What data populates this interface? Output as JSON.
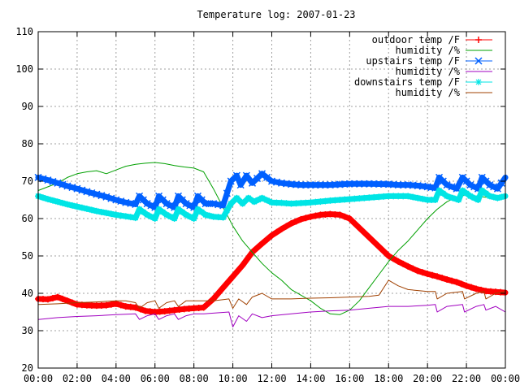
{
  "chart_data": {
    "type": "line",
    "title": "Temperature log: 2007-01-23",
    "xlabel": "",
    "ylabel": "",
    "xlim": [
      0,
      24
    ],
    "ylim": [
      20,
      110
    ],
    "grid": true,
    "legend_position": "top-right",
    "x_tick_labels": [
      "00:00",
      "02:00",
      "04:00",
      "06:00",
      "08:00",
      "10:00",
      "12:00",
      "14:00",
      "16:00",
      "18:00",
      "20:00",
      "22:00",
      "00:00"
    ],
    "y_tick_labels": [
      "20",
      "30",
      "40",
      "50",
      "60",
      "70",
      "80",
      "90",
      "100",
      "110"
    ],
    "y_ticks": [
      20,
      30,
      40,
      50,
      60,
      70,
      80,
      90,
      100,
      110
    ],
    "series": [
      {
        "name": "outdoor temp /F",
        "color": "#ff0000",
        "marker": "plus",
        "points": [
          [
            0,
            38.5
          ],
          [
            0.5,
            38.4
          ],
          [
            1,
            39
          ],
          [
            1.5,
            38
          ],
          [
            2,
            37
          ],
          [
            2.5,
            36.8
          ],
          [
            3,
            36.7
          ],
          [
            3.5,
            36.8
          ],
          [
            4,
            37.2
          ],
          [
            4.5,
            36.5
          ],
          [
            5,
            36.2
          ],
          [
            5.5,
            35.3
          ],
          [
            6,
            35
          ],
          [
            6.5,
            35.2
          ],
          [
            7,
            35.5
          ],
          [
            7.5,
            35.8
          ],
          [
            8,
            36
          ],
          [
            8.5,
            36.2
          ],
          [
            9,
            38.5
          ],
          [
            9.5,
            41.5
          ],
          [
            10,
            44.5
          ],
          [
            10.5,
            47.5
          ],
          [
            11,
            51
          ],
          [
            11.5,
            53.3
          ],
          [
            12,
            55.5
          ],
          [
            12.5,
            57.2
          ],
          [
            13,
            58.7
          ],
          [
            13.5,
            59.8
          ],
          [
            14,
            60.5
          ],
          [
            14.5,
            61
          ],
          [
            15,
            61.2
          ],
          [
            15.5,
            61
          ],
          [
            16,
            60
          ],
          [
            16.5,
            57.5
          ],
          [
            17,
            55
          ],
          [
            17.5,
            52.5
          ],
          [
            18,
            50
          ],
          [
            18.5,
            48.5
          ],
          [
            19,
            47.2
          ],
          [
            19.5,
            46
          ],
          [
            20,
            45.2
          ],
          [
            20.5,
            44.5
          ],
          [
            21,
            43.7
          ],
          [
            21.5,
            43
          ],
          [
            22,
            42
          ],
          [
            22.5,
            41.2
          ],
          [
            23,
            40.6
          ],
          [
            23.5,
            40.4
          ],
          [
            24,
            40.2
          ]
        ]
      },
      {
        "name": "humidity /%",
        "color": "#00a000",
        "marker": "none",
        "points": [
          [
            0,
            67.5
          ],
          [
            0.5,
            68.5
          ],
          [
            1,
            69.5
          ],
          [
            1.5,
            71
          ],
          [
            2,
            72
          ],
          [
            2.5,
            72.5
          ],
          [
            3,
            72.8
          ],
          [
            3.5,
            72
          ],
          [
            4,
            73
          ],
          [
            4.5,
            74
          ],
          [
            5,
            74.5
          ],
          [
            5.5,
            74.8
          ],
          [
            6,
            75
          ],
          [
            6.5,
            74.7
          ],
          [
            7,
            74.2
          ],
          [
            7.5,
            73.8
          ],
          [
            8,
            73.5
          ],
          [
            8.5,
            72.5
          ],
          [
            9,
            68
          ],
          [
            9.5,
            63
          ],
          [
            10,
            58
          ],
          [
            10.5,
            54
          ],
          [
            11,
            51
          ],
          [
            11.5,
            48
          ],
          [
            12,
            45.5
          ],
          [
            12.5,
            43.5
          ],
          [
            13,
            41
          ],
          [
            13.5,
            39.5
          ],
          [
            14,
            38
          ],
          [
            14.5,
            36
          ],
          [
            15,
            34.5
          ],
          [
            15.5,
            34.3
          ],
          [
            16,
            35.5
          ],
          [
            16.5,
            38
          ],
          [
            17,
            41.5
          ],
          [
            17.5,
            45
          ],
          [
            18,
            48.5
          ],
          [
            18.5,
            51.5
          ],
          [
            19,
            54
          ],
          [
            19.5,
            57
          ],
          [
            20,
            60
          ],
          [
            20.5,
            62.5
          ],
          [
            21,
            64.5
          ],
          [
            21.5,
            65.8
          ],
          [
            22,
            66.3
          ],
          [
            22.5,
            66
          ],
          [
            23,
            65.7
          ],
          [
            23.5,
            66
          ],
          [
            24,
            66
          ]
        ]
      },
      {
        "name": "upstairs temp /F",
        "color": "#0060ff",
        "marker": "cross",
        "points": [
          [
            0,
            71
          ],
          [
            0.5,
            70.3
          ],
          [
            1,
            69.5
          ],
          [
            1.5,
            68.7
          ],
          [
            2,
            68
          ],
          [
            2.5,
            67.2
          ],
          [
            3,
            66.5
          ],
          [
            3.5,
            65.8
          ],
          [
            4,
            65
          ],
          [
            4.5,
            64.3
          ],
          [
            5,
            63.8
          ],
          [
            5.2,
            66
          ],
          [
            5.6,
            64
          ],
          [
            6,
            63
          ],
          [
            6.2,
            66
          ],
          [
            6.6,
            64
          ],
          [
            7,
            63
          ],
          [
            7.2,
            66
          ],
          [
            7.6,
            64
          ],
          [
            8,
            63
          ],
          [
            8.2,
            66
          ],
          [
            8.6,
            64
          ],
          [
            9,
            64
          ],
          [
            9.5,
            63.5
          ],
          [
            9.9,
            70
          ],
          [
            10.2,
            71.5
          ],
          [
            10.4,
            69
          ],
          [
            10.7,
            71.5
          ],
          [
            11,
            69.5
          ],
          [
            11.5,
            72
          ],
          [
            12,
            70
          ],
          [
            12.5,
            69.5
          ],
          [
            13,
            69.2
          ],
          [
            13.5,
            69
          ],
          [
            14,
            69
          ],
          [
            15,
            69
          ],
          [
            16,
            69.3
          ],
          [
            17,
            69.3
          ],
          [
            18,
            69.2
          ],
          [
            18.5,
            69
          ],
          [
            19,
            69
          ],
          [
            19.5,
            68.8
          ],
          [
            20,
            68.5
          ],
          [
            20.4,
            68.2
          ],
          [
            20.6,
            71
          ],
          [
            21,
            69
          ],
          [
            21.5,
            68
          ],
          [
            21.8,
            71
          ],
          [
            22.2,
            69
          ],
          [
            22.6,
            68
          ],
          [
            22.8,
            71
          ],
          [
            23.2,
            69
          ],
          [
            23.6,
            68
          ],
          [
            24,
            71
          ]
        ]
      },
      {
        "name": "humidity /%",
        "color": "#a000c0",
        "marker": "none",
        "points": [
          [
            0,
            33
          ],
          [
            1,
            33.5
          ],
          [
            2,
            33.8
          ],
          [
            3,
            34
          ],
          [
            4,
            34.3
          ],
          [
            5,
            34.5
          ],
          [
            5.2,
            33
          ],
          [
            5.6,
            34
          ],
          [
            6,
            34.5
          ],
          [
            6.2,
            33
          ],
          [
            6.6,
            34
          ],
          [
            7,
            34.5
          ],
          [
            7.2,
            33
          ],
          [
            7.6,
            34
          ],
          [
            8,
            34.5
          ],
          [
            8.5,
            34.5
          ],
          [
            9,
            34.7
          ],
          [
            9.8,
            35
          ],
          [
            10,
            31
          ],
          [
            10.3,
            34
          ],
          [
            10.7,
            32.5
          ],
          [
            11,
            34.5
          ],
          [
            11.5,
            33.5
          ],
          [
            12,
            34
          ],
          [
            13,
            34.5
          ],
          [
            14,
            35
          ],
          [
            15,
            35.3
          ],
          [
            16,
            35.5
          ],
          [
            17,
            36
          ],
          [
            18,
            36.5
          ],
          [
            19,
            36.5
          ],
          [
            20,
            36.8
          ],
          [
            20.4,
            37
          ],
          [
            20.5,
            35
          ],
          [
            21,
            36.5
          ],
          [
            21.8,
            37
          ],
          [
            21.9,
            35
          ],
          [
            22.5,
            36.5
          ],
          [
            22.9,
            37
          ],
          [
            23,
            35.5
          ],
          [
            23.5,
            36.5
          ],
          [
            24,
            35
          ]
        ]
      },
      {
        "name": "downstairs temp /F",
        "color": "#00e5e5",
        "marker": "star",
        "points": [
          [
            0,
            66
          ],
          [
            0.5,
            65.2
          ],
          [
            1,
            64.5
          ],
          [
            1.5,
            63.8
          ],
          [
            2,
            63.2
          ],
          [
            2.5,
            62.6
          ],
          [
            3,
            62
          ],
          [
            3.5,
            61.5
          ],
          [
            4,
            61
          ],
          [
            4.5,
            60.6
          ],
          [
            5,
            60.2
          ],
          [
            5.2,
            62.5
          ],
          [
            5.6,
            61
          ],
          [
            6,
            60
          ],
          [
            6.2,
            62.5
          ],
          [
            6.6,
            61
          ],
          [
            7,
            60
          ],
          [
            7.2,
            62.5
          ],
          [
            7.6,
            61
          ],
          [
            8,
            60
          ],
          [
            8.2,
            62.5
          ],
          [
            8.6,
            61
          ],
          [
            9,
            60.5
          ],
          [
            9.5,
            60.3
          ],
          [
            9.9,
            64
          ],
          [
            10.2,
            65.5
          ],
          [
            10.5,
            64
          ],
          [
            10.8,
            65.5
          ],
          [
            11.1,
            64.5
          ],
          [
            11.5,
            65.5
          ],
          [
            12,
            64.3
          ],
          [
            12.5,
            64.2
          ],
          [
            13,
            64
          ],
          [
            14,
            64.3
          ],
          [
            15,
            64.8
          ],
          [
            16,
            65.2
          ],
          [
            17,
            65.6
          ],
          [
            18,
            66
          ],
          [
            19,
            66
          ],
          [
            19.5,
            65.5
          ],
          [
            20,
            65
          ],
          [
            20.4,
            65
          ],
          [
            20.6,
            67.5
          ],
          [
            21,
            66
          ],
          [
            21.6,
            65
          ],
          [
            21.8,
            67.5
          ],
          [
            22.2,
            66
          ],
          [
            22.6,
            65
          ],
          [
            22.8,
            67.5
          ],
          [
            23.2,
            66
          ],
          [
            23.6,
            65.5
          ],
          [
            24,
            66
          ]
        ]
      },
      {
        "name": "humidity /%",
        "color": "#a04000",
        "marker": "none",
        "points": [
          [
            0,
            37
          ],
          [
            1,
            37.2
          ],
          [
            2,
            37.5
          ],
          [
            3,
            37.7
          ],
          [
            4,
            38
          ],
          [
            4.5,
            38
          ],
          [
            5,
            37.5
          ],
          [
            5.2,
            36
          ],
          [
            5.6,
            37.5
          ],
          [
            6,
            38
          ],
          [
            6.2,
            36
          ],
          [
            6.6,
            37.5
          ],
          [
            7,
            38
          ],
          [
            7.2,
            36.5
          ],
          [
            7.6,
            38
          ],
          [
            8,
            38
          ],
          [
            8.5,
            38
          ],
          [
            9,
            38
          ],
          [
            9.8,
            38.5
          ],
          [
            10,
            36
          ],
          [
            10.3,
            38.5
          ],
          [
            10.7,
            37
          ],
          [
            11,
            39
          ],
          [
            11.5,
            40
          ],
          [
            12,
            38.5
          ],
          [
            13,
            38.5
          ],
          [
            14,
            38.7
          ],
          [
            15,
            38.8
          ],
          [
            16,
            39
          ],
          [
            17,
            39.2
          ],
          [
            17.5,
            39.5
          ],
          [
            18,
            43.5
          ],
          [
            18.5,
            42
          ],
          [
            19,
            41
          ],
          [
            20,
            40.5
          ],
          [
            20.4,
            40.5
          ],
          [
            20.5,
            38.5
          ],
          [
            21,
            40
          ],
          [
            21.8,
            40.5
          ],
          [
            21.9,
            38.5
          ],
          [
            22.5,
            40
          ],
          [
            22.9,
            40.5
          ],
          [
            23,
            38.5
          ],
          [
            23.5,
            40
          ],
          [
            24,
            40.5
          ]
        ]
      }
    ]
  }
}
